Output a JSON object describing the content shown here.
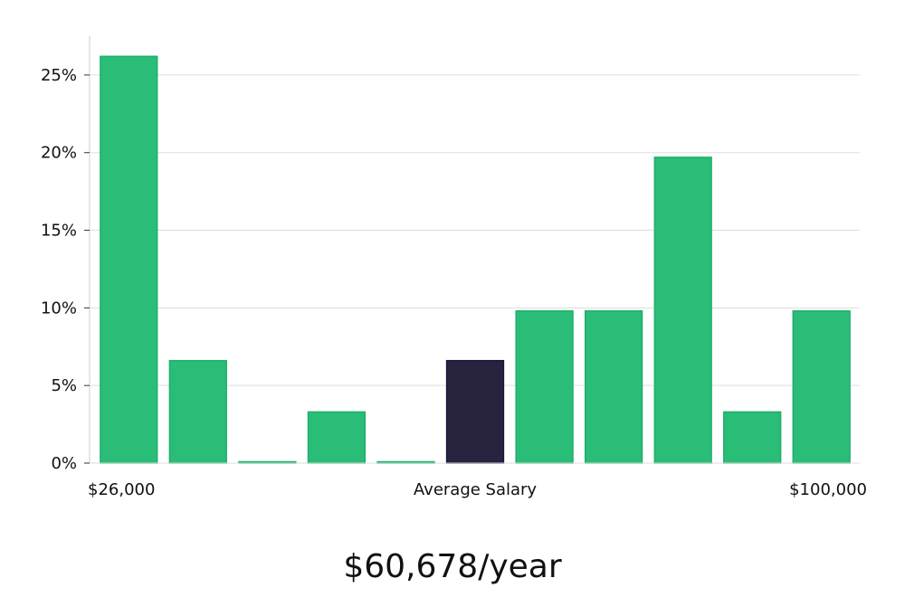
{
  "chart_data": {
    "type": "bar",
    "bins": 11,
    "values": [
      26.2,
      6.6,
      0,
      3.3,
      0,
      6.6,
      9.8,
      9.8,
      19.7,
      3.3,
      9.8
    ],
    "highlight_index": 5,
    "ylim": [
      0,
      27.5
    ],
    "yticks": [
      0,
      5,
      10,
      15,
      20,
      25
    ],
    "ytick_labels": [
      "0%",
      "5%",
      "10%",
      "15%",
      "20%",
      "25%"
    ],
    "x_labels": {
      "left": "$26,000",
      "center": "Average Salary",
      "right": "$100,000"
    },
    "grid": true,
    "colors": {
      "bar": "#2abd77",
      "bar_edge": "#1fb06c",
      "highlight": "#28243f",
      "highlight_edge": "#1a1636",
      "grid": "#dddddd",
      "axis": "#cccccc"
    }
  },
  "summary": {
    "salary_text": "$60,678/year"
  }
}
